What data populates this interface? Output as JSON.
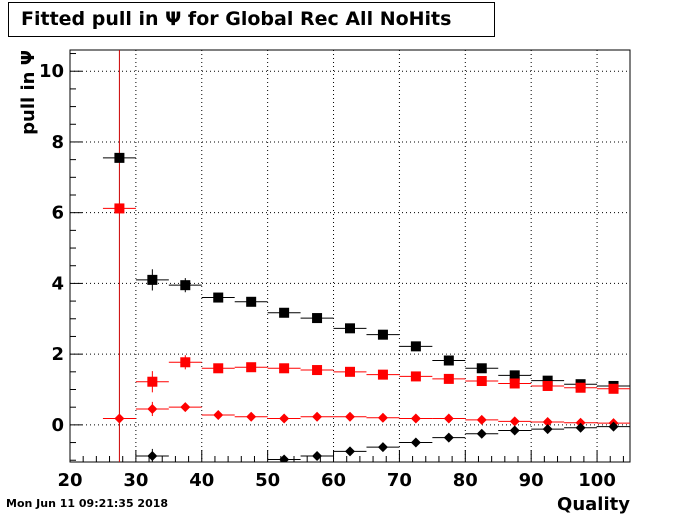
{
  "title": "Fitted pull in  Ψ  for Global Rec All NoHits",
  "timestamp": "Mon Jun 11 09:21:35 2018",
  "chart_data": {
    "type": "scatter",
    "title": "Fitted pull in  Ψ  for Global Rec All NoHits",
    "xlabel": "Quality",
    "ylabel": "pull in  Ψ",
    "xlim": [
      20,
      105
    ],
    "ylim": [
      -1.05,
      10.6
    ],
    "xticks": [
      20,
      30,
      40,
      50,
      60,
      70,
      80,
      90,
      100
    ],
    "yticks": [
      0,
      2,
      4,
      6,
      8,
      10
    ],
    "grid": true,
    "x": [
      27.5,
      32.5,
      37.5,
      42.5,
      47.5,
      52.5,
      57.5,
      62.5,
      67.5,
      72.5,
      77.5,
      82.5,
      87.5,
      92.5,
      97.5,
      102.5
    ],
    "xerr": 2.5,
    "vline": {
      "x": 27.5,
      "color": "#cc0000"
    },
    "series": [
      {
        "marker": "square",
        "color": "#000000",
        "values": [
          7.55,
          4.1,
          3.95,
          3.6,
          3.48,
          3.17,
          3.02,
          2.73,
          2.55,
          2.22,
          1.82,
          1.6,
          1.4,
          1.25,
          1.15,
          1.1
        ],
        "yerr": [
          0.1,
          0.3,
          0.2,
          0.05,
          0.05,
          0.05,
          0.05,
          0.05,
          0.05,
          0.05,
          0.05,
          0.05,
          0.05,
          0.05,
          0.05,
          0.05
        ]
      },
      {
        "marker": "square",
        "color": "#ff0000",
        "values": [
          6.12,
          1.22,
          1.77,
          1.6,
          1.63,
          1.6,
          1.55,
          1.5,
          1.42,
          1.37,
          1.3,
          1.24,
          1.17,
          1.1,
          1.05,
          1.02
        ],
        "yerr": [
          0.1,
          0.3,
          0.2,
          0.05,
          0.05,
          0.05,
          0.05,
          0.05,
          0.05,
          0.05,
          0.05,
          0.05,
          0.05,
          0.05,
          0.05,
          0.05
        ]
      },
      {
        "marker": "diamond",
        "color": "#ff0000",
        "values": [
          0.18,
          0.45,
          0.5,
          0.28,
          0.23,
          0.18,
          0.23,
          0.23,
          0.2,
          0.18,
          0.18,
          0.14,
          0.1,
          0.08,
          0.06,
          0.05
        ],
        "yerr": [
          0.05,
          0.2,
          0.1,
          0.05,
          0.05,
          0.05,
          0.05,
          0.05,
          0.05,
          0.05,
          0.05,
          0.05,
          0.05,
          0.05,
          0.05,
          0.05
        ]
      },
      {
        "marker": "diamond",
        "color": "#000000",
        "values": [
          null,
          -0.88,
          null,
          null,
          null,
          -0.98,
          -0.88,
          -0.75,
          -0.63,
          -0.5,
          -0.36,
          -0.25,
          -0.16,
          -0.12,
          -0.08,
          -0.05
        ],
        "yerr": [
          0,
          0.2,
          0,
          0,
          0,
          0.05,
          0.05,
          0.05,
          0.05,
          0.05,
          0.05,
          0.05,
          0.05,
          0.05,
          0.05,
          0.05
        ]
      }
    ]
  }
}
